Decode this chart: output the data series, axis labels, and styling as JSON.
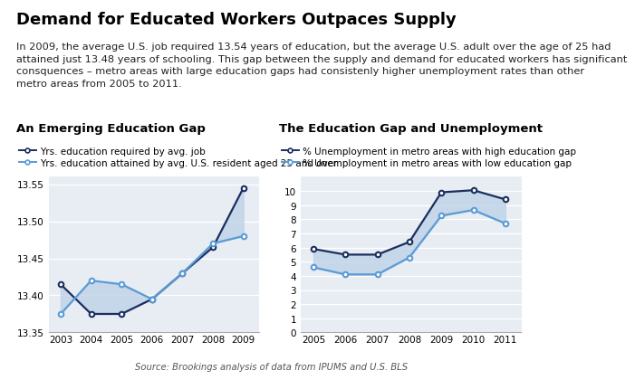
{
  "title": "Demand for Educated Workers Outpaces Supply",
  "subtitle": "In 2009, the average U.S. job required 13.54 years of education, but the average U.S. adult over the age of 25 had\nattained just 13.48 years of schooling. This gap between the supply and demand for educated workers has significant\nconsquences – metro areas with large education gaps had consistenly higher unemployment rates than other\nmetro areas from 2005 to 2011.",
  "source": "Source: Brookings analysis of data from IPUMS and U.S. BLS",
  "left_title": "An Emerging Education Gap",
  "right_title": "The Education Gap and Unemployment",
  "left_legend1": "Yrs. education required by avg. job",
  "left_legend2": "Yrs. education attained by avg. U.S. resident aged 25 and over",
  "right_legend1": "% Unemployment in metro areas with high education gap",
  "right_legend2": "% Unemployment in metro areas with low education gap",
  "left_years": [
    2003,
    2004,
    2005,
    2006,
    2007,
    2008,
    2009
  ],
  "left_dark": [
    13.415,
    13.375,
    13.375,
    13.395,
    13.43,
    13.465,
    13.545
  ],
  "left_light": [
    13.375,
    13.42,
    13.415,
    13.395,
    13.43,
    13.47,
    13.48
  ],
  "right_years": [
    2005,
    2006,
    2007,
    2008,
    2009,
    2010,
    2011
  ],
  "right_dark": [
    5.9,
    5.5,
    5.5,
    6.4,
    9.9,
    10.05,
    9.4
  ],
  "right_light": [
    4.6,
    4.1,
    4.1,
    5.3,
    8.25,
    8.65,
    7.7
  ],
  "left_ylim": [
    13.35,
    13.56
  ],
  "left_yticks": [
    13.35,
    13.4,
    13.45,
    13.5,
    13.55
  ],
  "right_ylim": [
    0,
    11
  ],
  "right_yticks": [
    0,
    1,
    2,
    3,
    4,
    5,
    6,
    7,
    8,
    9,
    10
  ],
  "dark_color": "#1b2f5f",
  "light_color": "#5b9bd5",
  "fill_color": "#c0d4e8",
  "bg_color": "#e8edf4",
  "title_fontsize": 13,
  "subtitle_fontsize": 8.2,
  "section_title_fontsize": 9.5,
  "axis_fontsize": 7.5,
  "legend_fontsize": 7.5
}
